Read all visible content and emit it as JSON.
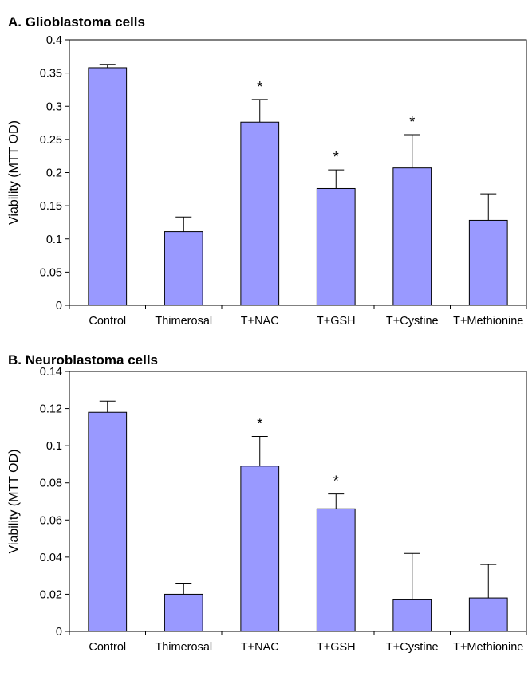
{
  "chart_data": [
    {
      "type": "bar",
      "title": "A. Glioblastoma cells",
      "ylabel": "Viability (MTT OD)",
      "xlabel": "",
      "categories": [
        "Control",
        "Thimerosal",
        "T+NAC",
        "T+GSH",
        "T+Cystine",
        "T+Methionine"
      ],
      "values": [
        0.358,
        0.111,
        0.276,
        0.176,
        0.207,
        0.128
      ],
      "errors": [
        0.005,
        0.022,
        0.034,
        0.028,
        0.05,
        0.04
      ],
      "significant": [
        false,
        false,
        true,
        true,
        true,
        false
      ],
      "ylim": [
        0,
        0.4
      ],
      "yticks": [
        "0",
        "0.05",
        "0.1",
        "0.15",
        "0.2",
        "0.25",
        "0.3",
        "0.35",
        "0.4"
      ],
      "marker": "*",
      "bar_color": "#9999ff",
      "grid": false
    },
    {
      "type": "bar",
      "title": "B. Neuroblastoma cells",
      "ylabel": "Viability (MTT OD)",
      "xlabel": "",
      "categories": [
        "Control",
        "Thimerosal",
        "T+NAC",
        "T+GSH",
        "T+Cystine",
        "T+Methionine"
      ],
      "values": [
        0.118,
        0.02,
        0.089,
        0.066,
        0.017,
        0.018
      ],
      "errors": [
        0.006,
        0.006,
        0.016,
        0.008,
        0.025,
        0.018
      ],
      "significant": [
        false,
        false,
        true,
        true,
        false,
        false
      ],
      "ylim": [
        0,
        0.14
      ],
      "yticks": [
        "0",
        "0.02",
        "0.04",
        "0.06",
        "0.08",
        "0.1",
        "0.12",
        "0.14"
      ],
      "marker": "*",
      "bar_color": "#9999ff",
      "grid": false
    }
  ]
}
